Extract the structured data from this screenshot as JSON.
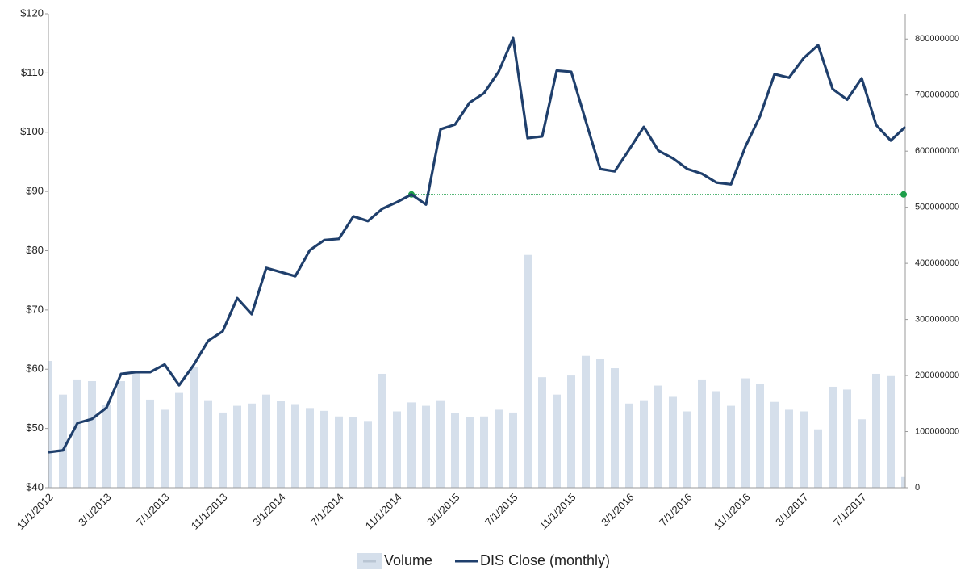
{
  "chart_data": {
    "type": "bar_line",
    "categories": [
      "11/1/2012",
      null,
      null,
      null,
      "3/1/2013",
      null,
      null,
      null,
      "7/1/2013",
      null,
      null,
      null,
      "11/1/2013",
      null,
      null,
      null,
      "3/1/2014",
      null,
      null,
      null,
      "7/1/2014",
      null,
      null,
      null,
      "11/1/2014",
      null,
      null,
      null,
      "3/1/2015",
      null,
      null,
      null,
      "7/1/2015",
      null,
      null,
      null,
      "11/1/2015",
      null,
      null,
      null,
      "3/1/2016",
      null,
      null,
      null,
      "7/1/2016",
      null,
      null,
      null,
      "11/1/2016",
      null,
      null,
      null,
      "3/1/2017",
      null,
      null,
      null,
      "7/1/2017",
      null,
      null,
      null
    ],
    "series": [
      {
        "name": "Volume",
        "type": "bar",
        "axis": "y2",
        "color": "#d5dfeb",
        "values": [
          226000000,
          166000000,
          193000000,
          190000000,
          148000000,
          190000000,
          206000000,
          157000000,
          139000000,
          169000000,
          216000000,
          156000000,
          134000000,
          146000000,
          150000000,
          166000000,
          155000000,
          149000000,
          142000000,
          137000000,
          127000000,
          126000000,
          119000000,
          203000000,
          136000000,
          152000000,
          146000000,
          156000000,
          133000000,
          126000000,
          127000000,
          139000000,
          134000000,
          415000000,
          197000000,
          166000000,
          200000000,
          235000000,
          229000000,
          213000000,
          150000000,
          156000000,
          182000000,
          162000000,
          136000000,
          193000000,
          172000000,
          146000000,
          195000000,
          185000000,
          153000000,
          139000000,
          136000000,
          104000000,
          180000000,
          175000000,
          122000000,
          203000000,
          199000000,
          19000000
        ]
      },
      {
        "name": "DIS Close (monthly)",
        "type": "line",
        "axis": "y",
        "color": "#1f3f6c",
        "values": [
          46.0,
          46.3,
          50.9,
          51.6,
          53.5,
          59.2,
          59.5,
          59.5,
          60.8,
          57.3,
          60.7,
          64.8,
          66.4,
          72.0,
          69.3,
          77.1,
          76.4,
          75.7,
          80.1,
          81.8,
          82.0,
          85.8,
          85.0,
          87.1,
          88.2,
          89.5,
          87.8,
          100.5,
          101.3,
          105.0,
          106.6,
          110.2,
          115.9,
          99.0,
          99.3,
          110.4,
          110.2,
          101.9,
          93.8,
          93.4,
          97.1,
          100.9,
          96.9,
          95.6,
          93.8,
          93.0,
          91.5,
          91.2,
          97.6,
          102.7,
          109.8,
          109.2,
          112.5,
          114.7,
          107.3,
          105.5,
          109.1,
          101.2,
          98.6,
          100.9
        ]
      }
    ],
    "reference_line": {
      "value": 89.5,
      "start_index": 25,
      "color": "#1e9e4a"
    },
    "ylim": [
      40,
      120
    ],
    "yticks": [
      {
        "value": 40,
        "label": "$40"
      },
      {
        "value": 50,
        "label": "$50"
      },
      {
        "value": 60,
        "label": "$60"
      },
      {
        "value": 70,
        "label": "$70"
      },
      {
        "value": 80,
        "label": "$80"
      },
      {
        "value": 90,
        "label": "$90"
      },
      {
        "value": 100,
        "label": "$100"
      },
      {
        "value": 110,
        "label": "$110"
      },
      {
        "value": 120,
        "label": "$120"
      }
    ],
    "y2lim": [
      0,
      845000000
    ],
    "y2ticks": [
      0,
      100000000,
      200000000,
      300000000,
      400000000,
      500000000,
      600000000,
      700000000,
      800000000
    ],
    "legend": "bottom"
  }
}
